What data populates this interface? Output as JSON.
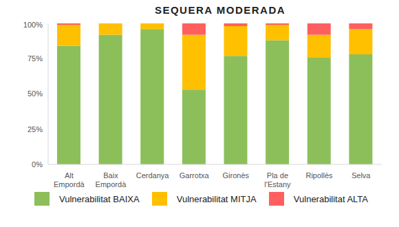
{
  "chart_data": {
    "type": "bar",
    "title": "SEQUERA MODERADA",
    "stacked": true,
    "grid": false,
    "legend": "bottom",
    "categories": [
      "Alt Empordà",
      "Baix Empordà",
      "Cerdanya",
      "Garrotxa",
      "Gironès",
      "Pla de l'Estany",
      "Ripollès",
      "Selva"
    ],
    "series": [
      {
        "name": "Vulnerabilitat BAIXA",
        "color": "#8cbf5a",
        "values": [
          84,
          92,
          96,
          53,
          77,
          88,
          76,
          78
        ]
      },
      {
        "name": "Vulnerabilitat MITJA",
        "color": "#ffc000",
        "values": [
          15,
          8,
          4,
          39,
          21,
          11,
          16,
          18
        ]
      },
      {
        "name": "Vulnerabilitat ALTA",
        "color": "#ff5f5f",
        "values": [
          1,
          0,
          0,
          8,
          2,
          1,
          8,
          4
        ]
      }
    ],
    "ylim": [
      0,
      100
    ],
    "yticks": [
      {
        "value": 0,
        "label": "0%"
      },
      {
        "value": 25,
        "label": "25%"
      },
      {
        "value": 50,
        "label": "50%"
      },
      {
        "value": 75,
        "label": "75%"
      },
      {
        "value": 100,
        "label": "100%"
      }
    ]
  }
}
